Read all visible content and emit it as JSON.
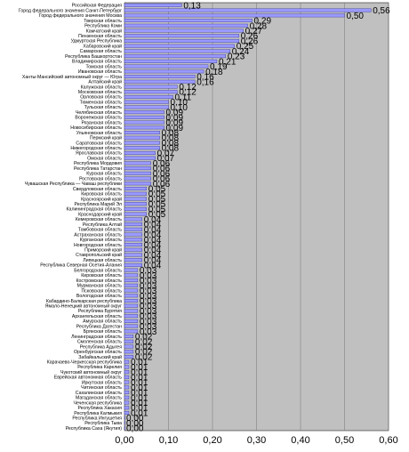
{
  "chart_data": {
    "type": "bar",
    "orientation": "horizontal",
    "title": "",
    "xlabel": "",
    "ylabel": "",
    "xlim": [
      0,
      0.6
    ],
    "xticks": [
      "0,00",
      "0,10",
      "0,20",
      "0,30",
      "0,40",
      "0,50",
      "0,60"
    ],
    "grid": true,
    "legend": "none",
    "colors": {
      "plot_background": "#c0c0c0",
      "bar_fill": "#9999ff",
      "bar_stroke": "#333399",
      "gridline": "#808080"
    },
    "categories": [
      "Российская Федерация",
      "Город федерального значения Санкт-Петербург",
      "Город федерального значения Москва",
      "Тверская область",
      "Республика Коми",
      "Камчатский край",
      "Пензенская область",
      "Удмуртская Республика",
      "Хабаровский край",
      "Самарская область",
      "Республика Башкортостан",
      "Владимирская область",
      "Томская область",
      "Ивановская область",
      "Ханты-Мансийский автономный округ — Югра",
      "Алтайский край",
      "Калужская область",
      "Московская область",
      "Орловская область",
      "Тюменская область",
      "Тульская область",
      "Челябинская область",
      "Воронежская область",
      "Рязанская область",
      "Новосибирская область",
      "Ульяновская область",
      "Пермский край",
      "Саратовская область",
      "Нижегородская область",
      "Ярославская область",
      "Омская область",
      "Республика Мордовия",
      "Республика Татарстан",
      "Курская область",
      "Ростовская область",
      "Чувашская Республика — Чаваш республики",
      "Свердловская область",
      "Кировская область",
      "Красноярский край",
      "Республика Марий Эл",
      "Калининградская область",
      "Краснодарский край",
      "Кемеровская область",
      "Республика Алтай",
      "Тамбовская область",
      "Астраханская область",
      "Курганская область",
      "Новгородская область",
      "Приморский край",
      "Ставропольский край",
      "Липецкая область",
      "Республика Северная Осетия-Алания",
      "Белгородская область",
      "Кировская область",
      "Костромская область",
      "Мурманская область",
      "Псковская область",
      "Вологодская область",
      "Кабардино-Балкарская республика",
      "Ямало-Ненецкий автономный округ",
      "Республика Бурятия",
      "Архангельская область",
      "Амурская область",
      "Республика Дагестан",
      "Брянская область",
      "Ленинградская область",
      "Смоленская область",
      "Республика Адыгея",
      "Оренбургская область",
      "Забайкальский край",
      "Карачаево-Черкесская республика",
      "Республика Карелия",
      "Чукотский автономный округ",
      "Еврейская автономная область",
      "Иркутская область",
      "Читинская область",
      "Сахалинская область",
      "Магаданская область",
      "Чеченская республика",
      "Республика Хакасия",
      "Республика Калмыкия",
      "Республика Ингушетия",
      "Республика Тыва",
      "Республика Саха (Якутия)"
    ],
    "values": [
      0.13,
      0.56,
      0.5,
      0.29,
      0.28,
      0.27,
      0.26,
      0.26,
      0.25,
      0.24,
      0.23,
      0.21,
      0.19,
      0.18,
      0.16,
      0.16,
      0.12,
      0.12,
      0.11,
      0.1,
      0.1,
      0.09,
      0.09,
      0.09,
      0.09,
      0.08,
      0.08,
      0.08,
      0.08,
      0.07,
      0.07,
      0.06,
      0.06,
      0.06,
      0.06,
      0.06,
      0.05,
      0.05,
      0.05,
      0.05,
      0.05,
      0.05,
      0.04,
      0.04,
      0.04,
      0.04,
      0.04,
      0.04,
      0.04,
      0.04,
      0.04,
      0.04,
      0.03,
      0.03,
      0.03,
      0.03,
      0.03,
      0.03,
      0.03,
      0.03,
      0.03,
      0.03,
      0.03,
      0.03,
      0.03,
      0.02,
      0.02,
      0.02,
      0.02,
      0.02,
      0.01,
      0.01,
      0.01,
      0.01,
      0.01,
      0.01,
      0.01,
      0.01,
      0.01,
      0.01,
      0.01,
      0.0,
      0.0,
      0.0
    ],
    "value_labels": [
      "0,13",
      "0,56",
      "0,50",
      "0,29",
      "0,28",
      "0,27",
      "0,26",
      "0,26",
      "0,25",
      "0,24",
      "0,23",
      "0,21",
      "0,19",
      "0,18",
      "0,16",
      "0,16",
      "0,12",
      "0,12",
      "0,11",
      "0,10",
      "0,10",
      "0,09",
      "0,09",
      "0,09",
      "0,09",
      "0,08",
      "0,08",
      "0,08",
      "0,08",
      "0,07",
      "0,07",
      "0,06",
      "0,06",
      "0,06",
      "0,06",
      "0,06",
      "0,05",
      "0,05",
      "0,05",
      "0,05",
      "0,05",
      "0,05",
      "0,04",
      "0,04",
      "0,04",
      "0,04",
      "0,04",
      "0,04",
      "0,04",
      "0,04",
      "0,04",
      "0,04",
      "0,03",
      "0,03",
      "0,03",
      "0,03",
      "0,03",
      "0,03",
      "0,03",
      "0,03",
      "0,03",
      "0,03",
      "0,03",
      "0,03",
      "0,03",
      "0,02",
      "0,02",
      "0,02",
      "0,02",
      "0,02",
      "0,01",
      "0,01",
      "0,01",
      "0,01",
      "0,01",
      "0,01",
      "0,01",
      "0,01",
      "0,01",
      "0,01",
      "0,01",
      "0,00",
      "0,00",
      "0,00"
    ]
  }
}
